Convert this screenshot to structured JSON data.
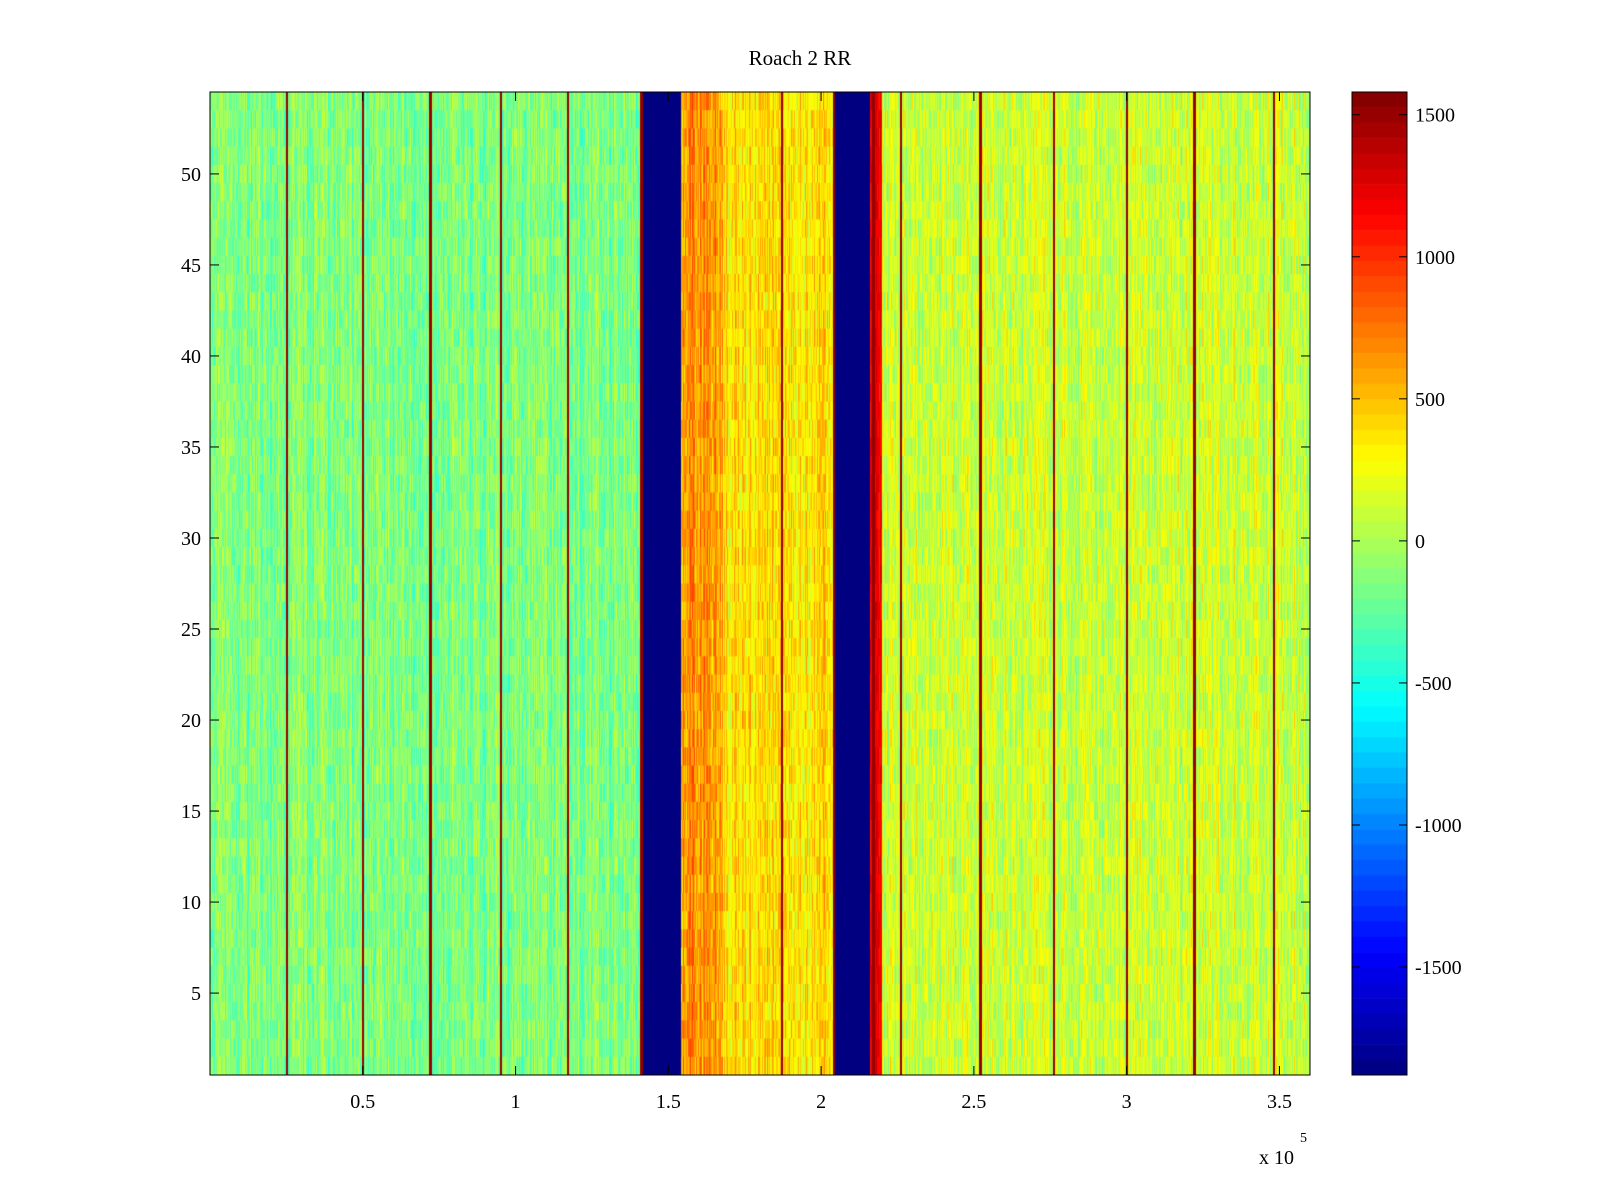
{
  "chart_data": {
    "type": "heatmap",
    "title": "Roach 2 RR",
    "xlabel": "",
    "ylabel": "",
    "x_multiplier_label": "x 10",
    "x_multiplier_exponent": "5",
    "xlim": [
      0,
      360000
    ],
    "ylim": [
      0.5,
      54.5
    ],
    "rows": 54,
    "xticks": [
      {
        "value": 50000,
        "label": "0.5"
      },
      {
        "value": 100000,
        "label": "1"
      },
      {
        "value": 150000,
        "label": "1.5"
      },
      {
        "value": 200000,
        "label": "2"
      },
      {
        "value": 250000,
        "label": "2.5"
      },
      {
        "value": 300000,
        "label": "3"
      },
      {
        "value": 350000,
        "label": "3.5"
      }
    ],
    "yticks": [
      {
        "value": 5,
        "label": "5"
      },
      {
        "value": 10,
        "label": "10"
      },
      {
        "value": 15,
        "label": "15"
      },
      {
        "value": 20,
        "label": "20"
      },
      {
        "value": 25,
        "label": "25"
      },
      {
        "value": 30,
        "label": "30"
      },
      {
        "value": 35,
        "label": "35"
      },
      {
        "value": 40,
        "label": "40"
      },
      {
        "value": 45,
        "label": "45"
      },
      {
        "value": 50,
        "label": "50"
      }
    ],
    "colorbar": {
      "colormap": "jet",
      "clim": [
        -1880,
        1580
      ],
      "ticks": [
        {
          "value": 1500,
          "label": "1500"
        },
        {
          "value": 1000,
          "label": "1000"
        },
        {
          "value": 500,
          "label": "500"
        },
        {
          "value": 0,
          "label": "0"
        },
        {
          "value": -500,
          "label": "-500"
        },
        {
          "value": -1000,
          "label": "-1000"
        },
        {
          "value": -1500,
          "label": "-1500"
        }
      ]
    },
    "regions": [
      {
        "x_start": 0,
        "x_end": 141500,
        "mean": -150,
        "spread": 380
      },
      {
        "x_start": 141500,
        "x_end": 154000,
        "mean": -1880,
        "spread": 0
      },
      {
        "x_start": 154000,
        "x_end": 168000,
        "mean": 650,
        "spread": 400
      },
      {
        "x_start": 168000,
        "x_end": 204000,
        "mean": 380,
        "spread": 400
      },
      {
        "x_start": 204000,
        "x_end": 216000,
        "mean": -1880,
        "spread": 0
      },
      {
        "x_start": 216000,
        "x_end": 220000,
        "mean": 1150,
        "spread": 250
      },
      {
        "x_start": 220000,
        "x_end": 360000,
        "mean": 120,
        "spread": 400
      }
    ],
    "spike_columns": [
      25000,
      50000,
      72000,
      95000,
      117000,
      141000,
      187000,
      204000,
      217000,
      226000,
      252000,
      276000,
      300000,
      322000,
      348000
    ],
    "spike_value": 1500
  }
}
